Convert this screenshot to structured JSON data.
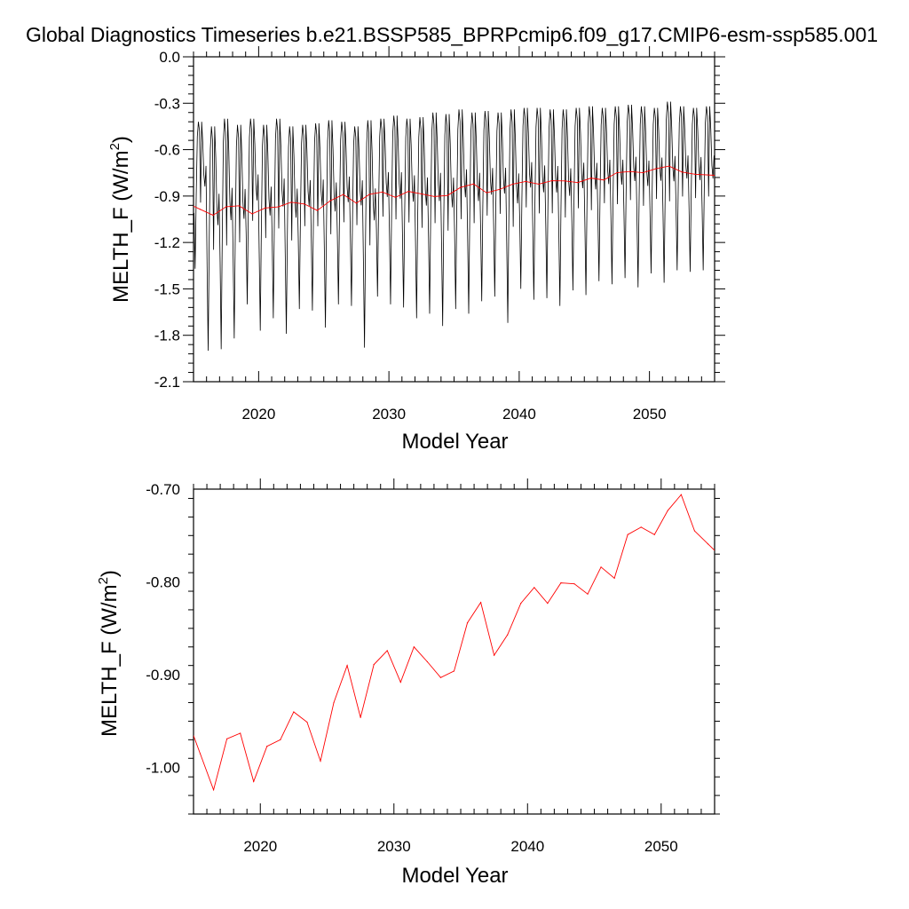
{
  "figure_title": "Global Diagnostics Timeseries b.e21.BSSP585_BPRPcmip6.f09_g17.CMIP6-esm-ssp585.001",
  "colors": {
    "monthly": "#000000",
    "annual": "#ff0000",
    "axes": "#000000"
  },
  "chart_data": [
    {
      "type": "line",
      "panel": "top",
      "xlabel": "Model Year",
      "ylabel_main": "MELTH_F (W/m",
      "ylabel_sup": "2",
      "ylabel_close": ")",
      "xlim": [
        2015,
        2055
      ],
      "ylim": [
        -2.1,
        0.0
      ],
      "xticks": [
        2020,
        2030,
        2040,
        2050
      ],
      "xtick_labels": [
        "2020",
        "2030",
        "2040",
        "2050"
      ],
      "yticks": [
        0.0,
        -0.3,
        -0.6,
        -0.9,
        -1.2,
        -1.5,
        -1.8,
        -2.1
      ],
      "ytick_labels": [
        "0.0",
        "-0.3",
        "-0.6",
        "-0.9",
        "-1.2",
        "-1.5",
        "-1.8",
        "-2.1"
      ],
      "monthly_minima_by_year": [
        -1.37,
        -1.9,
        -1.89,
        -1.82,
        -1.6,
        -1.77,
        -1.69,
        -1.79,
        -1.63,
        -1.64,
        -1.75,
        -1.6,
        -1.61,
        -1.88,
        -1.55,
        -1.6,
        -1.62,
        -1.69,
        -1.66,
        -1.74,
        -1.63,
        -1.66,
        -1.58,
        -1.55,
        -1.72,
        -1.5,
        -1.57,
        -1.56,
        -1.61,
        -1.51,
        -1.54,
        -1.45,
        -1.47,
        -1.43,
        -1.49,
        -1.4,
        -1.46,
        -1.38,
        -1.39,
        -1.38
      ],
      "monthly_maxima_by_year": [
        -0.42,
        -0.45,
        -0.4,
        -0.44,
        -0.4,
        -0.44,
        -0.4,
        -0.45,
        -0.44,
        -0.43,
        -0.41,
        -0.42,
        -0.45,
        -0.41,
        -0.4,
        -0.38,
        -0.4,
        -0.39,
        -0.36,
        -0.37,
        -0.34,
        -0.36,
        -0.35,
        -0.36,
        -0.34,
        -0.33,
        -0.33,
        -0.34,
        -0.34,
        -0.33,
        -0.32,
        -0.33,
        -0.32,
        -0.31,
        -0.32,
        -0.33,
        -0.29,
        -0.32,
        -0.33,
        -0.32
      ],
      "series": [
        {
          "name": "annual",
          "color": "#ff0000",
          "x": [
            2015.5,
            2016.5,
            2017.5,
            2018.5,
            2019.5,
            2020.5,
            2021.5,
            2022.5,
            2023.5,
            2024.5,
            2025.5,
            2026.5,
            2027.5,
            2028.5,
            2029.5,
            2030.5,
            2031.5,
            2032.5,
            2033.5,
            2034.5,
            2035.5,
            2036.5,
            2037.5,
            2038.5,
            2039.5,
            2040.5,
            2041.5,
            2042.5,
            2043.5,
            2044.5,
            2045.5,
            2046.5,
            2047.5,
            2048.5,
            2049.5,
            2050.5,
            2051.5,
            2052.5,
            2053.5
          ],
          "y": [
            -0.985,
            -1.024,
            -0.969,
            -0.963,
            -1.015,
            -0.977,
            -0.97,
            -0.94,
            -0.951,
            -0.993,
            -0.93,
            -0.89,
            -0.946,
            -0.889,
            -0.874,
            -0.908,
            -0.87,
            -0.886,
            -0.903,
            -0.896,
            -0.844,
            -0.822,
            -0.879,
            -0.857,
            -0.823,
            -0.806,
            -0.823,
            -0.801,
            -0.802,
            -0.813,
            -0.784,
            -0.796,
            -0.749,
            -0.741,
            -0.749,
            -0.723,
            -0.706,
            -0.745,
            -0.759
          ]
        }
      ]
    },
    {
      "type": "line",
      "panel": "bottom",
      "xlabel": "Model Year",
      "ylabel_main": "MELTH_F (W/m",
      "ylabel_sup": "2",
      "ylabel_close": ")",
      "xlim": [
        2015,
        2054
      ],
      "ylim": [
        -1.05,
        -0.7
      ],
      "xticks": [
        2020,
        2030,
        2040,
        2050
      ],
      "xtick_labels": [
        "2020",
        "2030",
        "2040",
        "2050"
      ],
      "yticks": [
        -0.7,
        -0.8,
        -0.9,
        -1.0
      ],
      "ytick_labels": [
        "-0.70",
        "-0.80",
        "-0.90",
        "-1.00"
      ],
      "series": [
        {
          "name": "annual",
          "color": "#ff0000",
          "x": [
            2015.5,
            2016.5,
            2017.5,
            2018.5,
            2019.5,
            2020.5,
            2021.5,
            2022.5,
            2023.5,
            2024.5,
            2025.5,
            2026.5,
            2027.5,
            2028.5,
            2029.5,
            2030.5,
            2031.5,
            2032.5,
            2033.5,
            2034.5,
            2035.5,
            2036.5,
            2037.5,
            2038.5,
            2039.5,
            2040.5,
            2041.5,
            2042.5,
            2043.5,
            2044.5,
            2045.5,
            2046.5,
            2047.5,
            2048.5,
            2049.5,
            2050.5,
            2051.5,
            2052.5,
            2053.5
          ],
          "y": [
            -0.985,
            -1.024,
            -0.969,
            -0.963,
            -1.015,
            -0.977,
            -0.97,
            -0.94,
            -0.951,
            -0.993,
            -0.93,
            -0.89,
            -0.946,
            -0.889,
            -0.874,
            -0.908,
            -0.87,
            -0.886,
            -0.903,
            -0.896,
            -0.844,
            -0.822,
            -0.879,
            -0.857,
            -0.823,
            -0.806,
            -0.823,
            -0.801,
            -0.802,
            -0.813,
            -0.784,
            -0.796,
            -0.749,
            -0.741,
            -0.749,
            -0.723,
            -0.706,
            -0.745,
            -0.759
          ]
        }
      ]
    }
  ]
}
